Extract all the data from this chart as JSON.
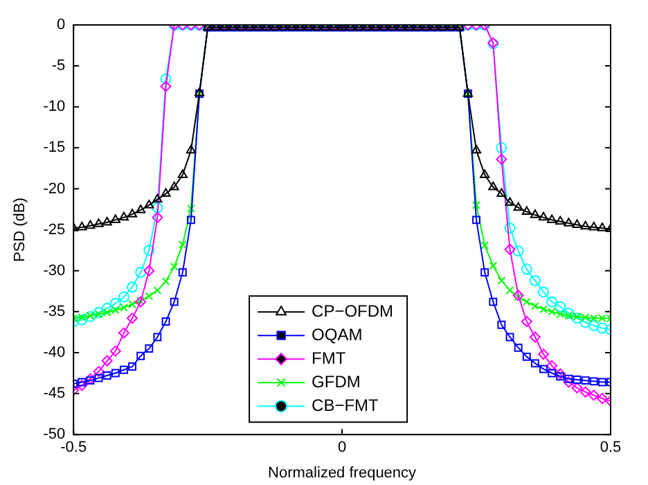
{
  "chart_data": {
    "type": "line",
    "xlabel": "Normalized frequency",
    "ylabel": "PSD (dB)",
    "x": [
      -0.5,
      -0.484375,
      -0.46875,
      -0.453125,
      -0.4375,
      -0.421875,
      -0.40625,
      -0.390625,
      -0.375,
      -0.359375,
      -0.34375,
      -0.328125,
      -0.3125,
      -0.296875,
      -0.28125,
      -0.265625,
      -0.25,
      -0.234375,
      -0.21875,
      -0.203125,
      -0.1875,
      -0.171875,
      -0.15625,
      -0.140625,
      -0.125,
      -0.109375,
      -0.09375,
      -0.078125,
      -0.0625,
      -0.046875,
      -0.03125,
      -0.015625,
      0,
      0.015625,
      0.03125,
      0.046875,
      0.0625,
      0.078125,
      0.09375,
      0.109375,
      0.125,
      0.140625,
      0.15625,
      0.171875,
      0.1875,
      0.203125,
      0.21875,
      0.234375,
      0.25,
      0.265625,
      0.28125,
      0.296875,
      0.3125,
      0.328125,
      0.34375,
      0.359375,
      0.375,
      0.390625,
      0.40625,
      0.421875,
      0.4375,
      0.453125,
      0.46875,
      0.484375,
      0.5
    ],
    "series": [
      {
        "name": "CP−OFDM",
        "color": "#000000",
        "marker": "triangle",
        "values": [
          -24.8,
          -24.7,
          -24.5,
          -24.3,
          -24.1,
          -23.8,
          -23.5,
          -23.1,
          -22.6,
          -22.0,
          -21.3,
          -20.6,
          -19.8,
          -18.3,
          -15.3,
          -8.3,
          -0.3,
          -0.3,
          -0.3,
          -0.3,
          -0.3,
          -0.3,
          -0.3,
          -0.3,
          -0.3,
          -0.3,
          -0.3,
          -0.3,
          -0.3,
          -0.3,
          -0.3,
          -0.3,
          -0.3,
          -0.3,
          -0.3,
          -0.3,
          -0.3,
          -0.3,
          -0.3,
          -0.3,
          -0.3,
          -0.3,
          -0.3,
          -0.3,
          -0.3,
          -0.3,
          -0.3,
          -8.4,
          -15.3,
          -18.3,
          -19.8,
          -20.6,
          -21.7,
          -22.3,
          -22.8,
          -23.2,
          -23.5,
          -23.8,
          -24.0,
          -24.2,
          -24.4,
          -24.6,
          -24.7,
          -24.8,
          -24.9
        ]
      },
      {
        "name": "OQAM",
        "color": "#0000ff",
        "marker": "square",
        "values": [
          -43.8,
          -43.6,
          -43.4,
          -43.1,
          -42.8,
          -42.5,
          -42.1,
          -41.7,
          -40.4,
          -39.5,
          -38.1,
          -36.2,
          -33.8,
          -30.2,
          -23.8,
          -8.4,
          -0.3,
          -0.3,
          -0.3,
          -0.3,
          -0.3,
          -0.3,
          -0.3,
          -0.3,
          -0.3,
          -0.3,
          -0.3,
          -0.3,
          -0.3,
          -0.3,
          -0.3,
          -0.3,
          -0.3,
          -0.3,
          -0.3,
          -0.3,
          -0.3,
          -0.3,
          -0.3,
          -0.3,
          -0.3,
          -0.3,
          -0.3,
          -0.3,
          -0.3,
          -0.3,
          -0.3,
          -8.4,
          -23.8,
          -30.2,
          -33.8,
          -36.6,
          -38.1,
          -39.4,
          -40.5,
          -41.3,
          -42.0,
          -42.5,
          -42.9,
          -43.2,
          -43.3,
          -43.4,
          -43.5,
          -43.6,
          -43.6
        ]
      },
      {
        "name": "FMT",
        "color": "#ff00ff",
        "marker": "diamond",
        "values": [
          -44.6,
          -44.0,
          -43.2,
          -42.3,
          -41.0,
          -39.8,
          -37.6,
          -35.8,
          -33.8,
          -30.0,
          -23.5,
          -7.5,
          0,
          0,
          0,
          0,
          0,
          0,
          0,
          0,
          0,
          0,
          0,
          0,
          0,
          0,
          0,
          0,
          0,
          0,
          0,
          0,
          0,
          0,
          0,
          0,
          0,
          0,
          0,
          0,
          0,
          0,
          0,
          0,
          0,
          0,
          0,
          0,
          0,
          0,
          -2.2,
          -16.4,
          -27.4,
          -33.0,
          -36.2,
          -38.1,
          -40.2,
          -41.6,
          -42.6,
          -43.6,
          -44.3,
          -44.8,
          -45.2,
          -45.6,
          -45.9
        ]
      },
      {
        "name": "GFDM",
        "color": "#00ff00",
        "marker": "cross",
        "values": [
          -35.8,
          -35.7,
          -35.5,
          -35.3,
          -35.1,
          -34.8,
          -34.5,
          -34.1,
          -33.7,
          -33.1,
          -32.4,
          -31.3,
          -29.5,
          -26.8,
          -22.4,
          -8.4,
          -0.3,
          -0.3,
          -0.3,
          -0.3,
          -0.3,
          -0.3,
          -0.3,
          -0.3,
          -0.3,
          -0.3,
          -0.3,
          -0.3,
          -0.3,
          -0.3,
          -0.3,
          -0.3,
          -0.3,
          -0.3,
          -0.3,
          -0.3,
          -0.3,
          -0.3,
          -0.3,
          -0.3,
          -0.3,
          -0.3,
          -0.3,
          -0.3,
          -0.3,
          -0.3,
          -0.3,
          -8.4,
          -22.0,
          -26.9,
          -29.4,
          -31.2,
          -32.4,
          -33.2,
          -33.8,
          -34.3,
          -34.7,
          -35.0,
          -35.3,
          -35.5,
          -35.6,
          -35.7,
          -35.8,
          -35.8,
          -35.8
        ]
      },
      {
        "name": "CB−FMT",
        "color": "#00ffff",
        "marker": "circle",
        "values": [
          -36.2,
          -36.0,
          -35.6,
          -35.1,
          -34.6,
          -34.0,
          -33.2,
          -32.0,
          -30.2,
          -27.5,
          -22.3,
          -6.6,
          0,
          0,
          0,
          0,
          0,
          0,
          0,
          0,
          0,
          0,
          0,
          0,
          0,
          0,
          0,
          0,
          0,
          0,
          0,
          0,
          0,
          0,
          0,
          0,
          0,
          0,
          0,
          0,
          0,
          0,
          0,
          0,
          0,
          0,
          0,
          0,
          0,
          0,
          -2.3,
          -15.0,
          -24.8,
          -27.6,
          -29.8,
          -31.2,
          -32.6,
          -33.8,
          -34.4,
          -35.2,
          -35.8,
          -36.3,
          -36.7,
          -37.0,
          -37.2
        ]
      }
    ],
    "xlim": [
      -0.5,
      0.5
    ],
    "xticks": [
      -0.5,
      0,
      0.5
    ],
    "ylim": [
      -50,
      0
    ],
    "yticks": [
      -50,
      -45,
      -40,
      -35,
      -30,
      -25,
      -20,
      -15,
      -10,
      -5,
      0
    ],
    "grid": false,
    "legend": "bottom",
    "line_style": "solid"
  }
}
